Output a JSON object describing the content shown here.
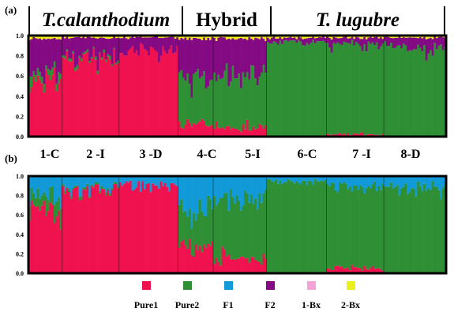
{
  "header": {
    "groups": [
      {
        "label": "T.calanthodium",
        "italic": true
      },
      {
        "label": "Hybrid",
        "italic": false
      },
      {
        "label": "T. lugubre",
        "italic": true
      }
    ]
  },
  "legend": [
    {
      "label": "Pure1",
      "color": "#f0124f"
    },
    {
      "label": "Pure2",
      "color": "#2f8f35"
    },
    {
      "label": "F1",
      "color": "#1199d8"
    },
    {
      "label": "F2",
      "color": "#840a84"
    },
    {
      "label": "1-Bx",
      "color": "#f4a3d9"
    },
    {
      "label": "2-Bx",
      "color": "#ecf01a"
    }
  ],
  "chart_data": [
    {
      "type": "stacked-bar",
      "panel_label": "(a)",
      "ylim": [
        0,
        1
      ],
      "yticks": [
        "0.0",
        "0.2",
        "0.4",
        "0.6",
        "0.8",
        "1.0"
      ],
      "populations": [
        "1-C",
        "2 -I",
        "3 -D",
        "4-C",
        "5-I",
        "6-C",
        "7 -I",
        "8-D"
      ],
      "series_order": [
        "Pure1",
        "Pure2",
        "F1",
        "F2",
        "1-Bx",
        "2-Bx"
      ],
      "population_mean_proportions": [
        {
          "population": "1-C",
          "Pure1": 0.55,
          "Pure2": 0.08,
          "F1": 0.0,
          "F2": 0.34,
          "1-Bx": 0.0,
          "2-Bx": 0.03
        },
        {
          "population": "2 -I",
          "Pure1": 0.78,
          "Pure2": 0.02,
          "F1": 0.0,
          "F2": 0.18,
          "1-Bx": 0.0,
          "2-Bx": 0.02
        },
        {
          "population": "3 -D",
          "Pure1": 0.85,
          "Pure2": 0.0,
          "F1": 0.0,
          "F2": 0.13,
          "1-Bx": 0.0,
          "2-Bx": 0.02
        },
        {
          "population": "4-C",
          "Pure1": 0.12,
          "Pure2": 0.45,
          "F1": 0.0,
          "F2": 0.4,
          "1-Bx": 0.0,
          "2-Bx": 0.03
        },
        {
          "population": "5-I",
          "Pure1": 0.08,
          "Pure2": 0.52,
          "F1": 0.0,
          "F2": 0.37,
          "1-Bx": 0.0,
          "2-Bx": 0.03
        },
        {
          "population": "6-C",
          "Pure1": 0.0,
          "Pure2": 0.94,
          "F1": 0.0,
          "F2": 0.04,
          "1-Bx": 0.0,
          "2-Bx": 0.02
        },
        {
          "population": "7 -I",
          "Pure1": 0.02,
          "Pure2": 0.9,
          "F1": 0.0,
          "F2": 0.06,
          "1-Bx": 0.0,
          "2-Bx": 0.02
        },
        {
          "population": "8-D",
          "Pure1": 0.0,
          "Pure2": 0.88,
          "F1": 0.0,
          "F2": 0.1,
          "1-Bx": 0.0,
          "2-Bx": 0.02
        }
      ]
    },
    {
      "type": "stacked-bar",
      "panel_label": "(b)",
      "ylim": [
        0,
        1
      ],
      "yticks": [
        "0.0",
        "0.2",
        "0.4",
        "0.6",
        "0.8",
        "1.0"
      ],
      "populations": [
        "1-C",
        "2 -I",
        "3 -D",
        "4-C",
        "5-I",
        "6-C",
        "7 -I",
        "8-D"
      ],
      "series_order": [
        "Pure1",
        "Pure2",
        "F1",
        "F2",
        "1-Bx",
        "2-Bx"
      ],
      "population_mean_proportions": [
        {
          "population": "1-C",
          "Pure1": 0.65,
          "Pure2": 0.15,
          "F1": 0.2,
          "F2": 0.0,
          "1-Bx": 0.0,
          "2-Bx": 0.0
        },
        {
          "population": "2 -I",
          "Pure1": 0.86,
          "Pure2": 0.02,
          "F1": 0.12,
          "F2": 0.0,
          "1-Bx": 0.0,
          "2-Bx": 0.0
        },
        {
          "population": "3 -D",
          "Pure1": 0.9,
          "Pure2": 0.0,
          "F1": 0.1,
          "F2": 0.0,
          "1-Bx": 0.0,
          "2-Bx": 0.0
        },
        {
          "population": "4-C",
          "Pure1": 0.25,
          "Pure2": 0.4,
          "F1": 0.35,
          "F2": 0.0,
          "1-Bx": 0.0,
          "2-Bx": 0.0
        },
        {
          "population": "5-I",
          "Pure1": 0.15,
          "Pure2": 0.6,
          "F1": 0.25,
          "F2": 0.0,
          "1-Bx": 0.0,
          "2-Bx": 0.0
        },
        {
          "population": "6-C",
          "Pure1": 0.0,
          "Pure2": 0.95,
          "F1": 0.05,
          "F2": 0.0,
          "1-Bx": 0.0,
          "2-Bx": 0.0
        },
        {
          "population": "7 -I",
          "Pure1": 0.05,
          "Pure2": 0.85,
          "F1": 0.1,
          "F2": 0.0,
          "1-Bx": 0.0,
          "2-Bx": 0.0
        },
        {
          "population": "8-D",
          "Pure1": 0.0,
          "Pure2": 0.88,
          "F1": 0.12,
          "F2": 0.0,
          "1-Bx": 0.0,
          "2-Bx": 0.0
        }
      ]
    }
  ]
}
